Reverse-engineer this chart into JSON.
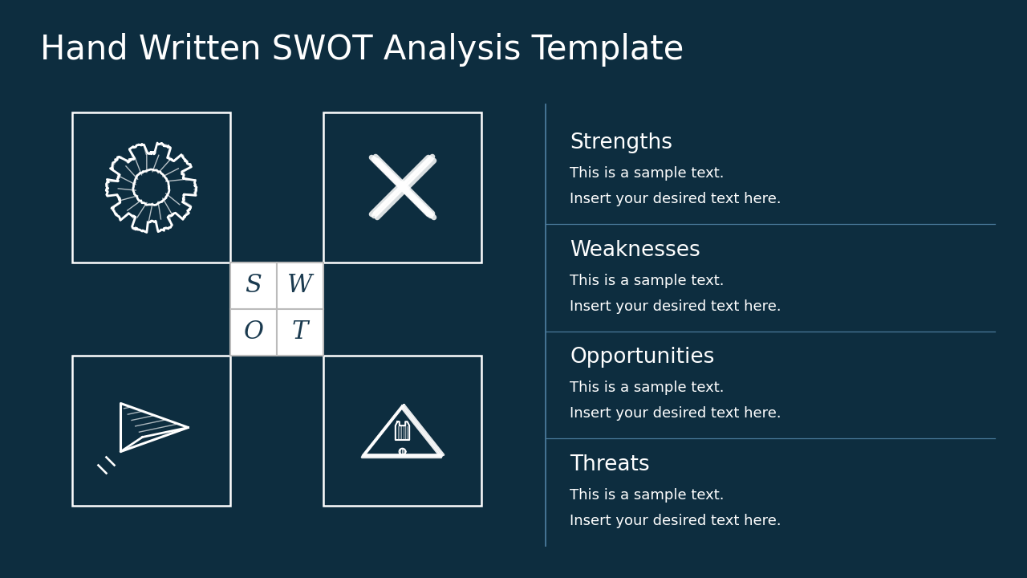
{
  "title": "Hand Written SWOT Analysis Template",
  "background_color": "#0d2d3f",
  "title_color": "#ffffff",
  "title_fontsize": 30,
  "sections": [
    "Strengths",
    "Weaknesses",
    "Opportunities",
    "Threats"
  ],
  "swot_letters": [
    "S",
    "W",
    "O",
    "T"
  ],
  "sample_text_line1": "This is a sample text.",
  "sample_text_line2": "Insert your desired text here.",
  "section_title_fontsize": 19,
  "section_body_fontsize": 13,
  "text_color": "#ffffff",
  "box_color": "#ffffff",
  "swot_box_bg": "#ffffff",
  "swot_letter_color": "#1a3a4f",
  "divider_color": "#4a7a9b"
}
